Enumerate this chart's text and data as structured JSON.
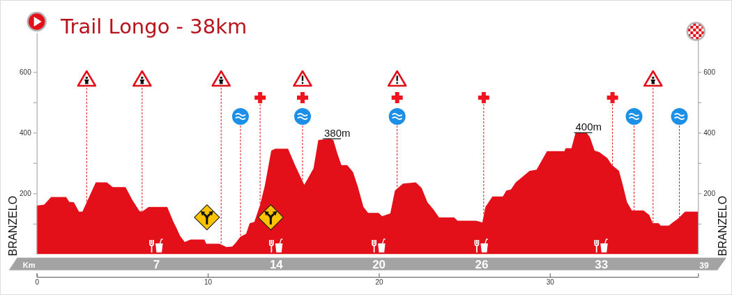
{
  "chart_data": {
    "type": "area",
    "title": "Trail Longo - 38km",
    "ylabel": "BRANZELO",
    "y2label": "BRANZELO",
    "x2label": "Km",
    "color": "#e3101a",
    "x": [
      0,
      0.43,
      0.84,
      1.72,
      1.9,
      2.17,
      2.47,
      2.67,
      3.45,
      4.1,
      4.44,
      5.19,
      5.59,
      6.0,
      6.16,
      6.54,
      7.63,
      7.97,
      8.17,
      8.38,
      8.65,
      8.99,
      9.8,
      9.91,
      10.68,
      11.09,
      11.43,
      11.63,
      11.9,
      12.24,
      12.45,
      12.72,
      13.06,
      13.33,
      13.71,
      13.94,
      14.69,
      15.1,
      15.64,
      16.18,
      16.46,
      17.13,
      17.34,
      17.57,
      17.81,
      18.15,
      18.49,
      18.76,
      19.1,
      19.37,
      19.98,
      20.19,
      20.67,
      20.94,
      21.41,
      22.16,
      22.5,
      22.84,
      23.18,
      23.52,
      24.4,
      24.6,
      25.69,
      26.05,
      26.23,
      26.64,
      27.25,
      27.45,
      27.72,
      28.0,
      28.81,
      29.22,
      29.83,
      30.85,
      30.92,
      31.26,
      31.5,
      32.14,
      32.34,
      32.61,
      32.88,
      33.36,
      33.63,
      34.04,
      34.24,
      34.51,
      34.79,
      35.47,
      35.81,
      36.01,
      36.35,
      36.48,
      36.95,
      37.22,
      37.49,
      37.9,
      38.66
    ],
    "values": [
      160,
      163,
      188,
      188,
      172,
      171,
      140,
      140,
      236,
      236,
      221,
      221,
      178,
      142,
      140,
      155,
      155,
      109,
      86,
      60,
      40,
      48,
      48,
      34,
      34,
      23,
      25,
      37,
      57,
      67,
      102,
      106,
      163,
      224,
      341,
      347,
      347,
      293,
      228,
      282,
      376,
      380,
      376,
      332,
      293,
      293,
      270,
      224,
      155,
      136,
      136,
      125,
      134,
      209,
      232,
      236,
      218,
      171,
      148,
      121,
      121,
      110,
      110,
      104,
      155,
      190,
      190,
      209,
      213,
      236,
      274,
      278,
      339,
      339,
      349,
      349,
      400,
      400,
      385,
      341,
      336,
      316,
      293,
      274,
      232,
      171,
      144,
      144,
      129,
      102,
      102,
      94,
      94,
      106,
      117,
      140,
      140
    ],
    "xlim": [
      0,
      38.66
    ],
    "xticks": [
      0,
      10,
      20,
      30
    ],
    "x2lim": [
      0,
      39
    ],
    "x2ticks": [
      7,
      14,
      20,
      26,
      33,
      39
    ],
    "ylim": [
      0,
      730
    ],
    "yticks": [
      {
        "value": 100,
        "label": null
      },
      200,
      {
        "value": 300,
        "label": null
      },
      400,
      {
        "value": 500,
        "label": null
      },
      600
    ],
    "y2lim": [
      0,
      730
    ],
    "y2ticks": [
      {
        "value": 100,
        "label": null
      },
      200,
      {
        "value": 300,
        "label": null
      },
      400,
      {
        "value": 500,
        "label": null
      },
      600
    ],
    "annotations": [
      {
        "text": "380m",
        "x": 17.13,
        "y": 380
      },
      {
        "text": "400m",
        "x": 31.82,
        "y": 400
      }
    ],
    "ref_lines": [
      {
        "axis": "x",
        "value": 2.92,
        "color": "#e8141c",
        "line_style": "dashed"
      },
      {
        "axis": "x",
        "value": 6.16,
        "color": "#e8141c",
        "line_style": "dashed"
      },
      {
        "axis": "x",
        "value": 10.78,
        "color": "#e8141c",
        "line_style": "dashed"
      },
      {
        "axis": "x",
        "value": 11.91,
        "color": "#e8141c",
        "line_style": "dashed"
      },
      {
        "axis": "x",
        "value": 13.06,
        "color": "#e8141c",
        "line_style": "dashed"
      },
      {
        "axis": "x",
        "value": 15.54,
        "color": "#e8141c",
        "line_style": "dashed"
      },
      {
        "axis": "x",
        "value": 21.07,
        "color": "#e8141c",
        "line_style": "dashed"
      },
      {
        "axis": "x",
        "value": 26.13,
        "color": "#e8141c",
        "line_style": "dashed"
      },
      {
        "axis": "x",
        "value": 33.66,
        "color": "#e8141c",
        "line_style": "dashed"
      },
      {
        "axis": "x",
        "value": 34.92,
        "color": "#e8141c",
        "line_style": "dashed"
      },
      {
        "axis": "x",
        "value": 36.03,
        "color": "#e8141c",
        "line_style": "dashed"
      },
      {
        "axis": "x",
        "value": 37.57,
        "color": "#e8141c",
        "line_style": "dashed"
      }
    ]
  }
}
